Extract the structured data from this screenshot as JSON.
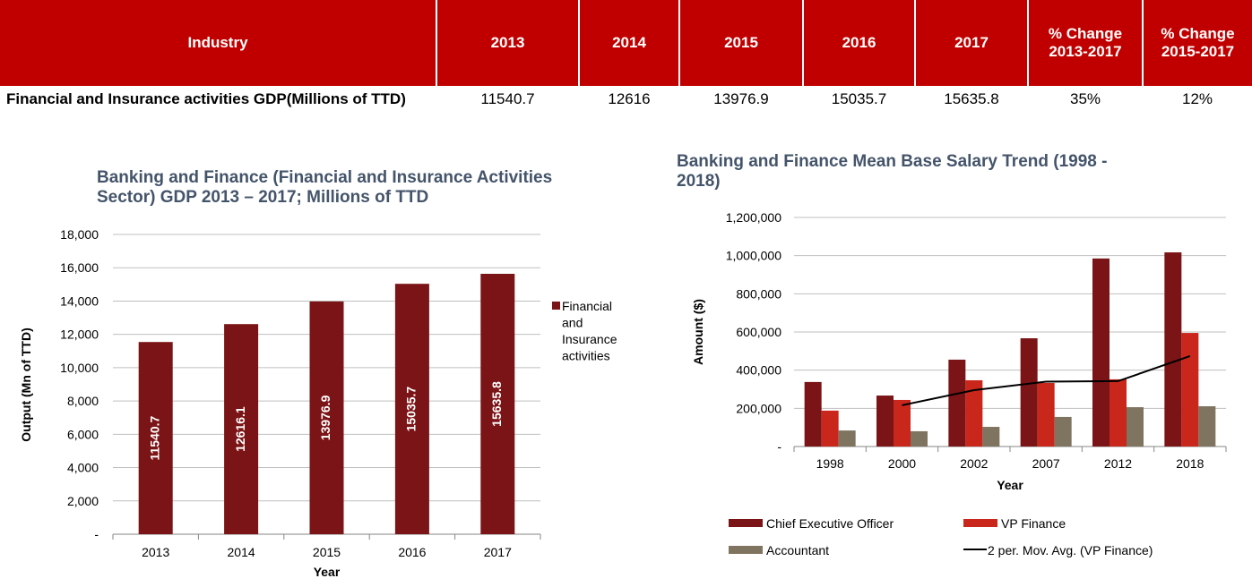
{
  "table": {
    "headers": [
      "Industry",
      "2013",
      "2014",
      "2015",
      "2016",
      "2017",
      "% Change 2013-2017",
      "% Change 2015-2017"
    ],
    "rows": [
      [
        "Financial and Insurance activities GDP(Millions of TTD)",
        "11540.7",
        "12616",
        "13976.9",
        "15035.7",
        "15635.8",
        "35%",
        "12%"
      ]
    ]
  },
  "colors": {
    "header_bg": "#c00000",
    "gdp_bar": "#7b1416",
    "ceo": "#7b1416",
    "vp": "#c9261c",
    "accountant": "#7f7460",
    "moving_avg": "#000000",
    "title": "#44546a"
  },
  "chart_data": [
    {
      "type": "bar",
      "title": "Banking and Finance (Financial and Insurance Activities Sector) GDP 2013 – 2017; Millions of TTD",
      "xlabel": "Year",
      "ylabel": "Output  (Mn of TTD)",
      "categories": [
        "2013",
        "2014",
        "2015",
        "2016",
        "2017"
      ],
      "series": [
        {
          "name": "Financial and Insurance activities",
          "values": [
            11540.7,
            12616.1,
            13976.9,
            15035.7,
            15635.8
          ]
        }
      ],
      "data_labels": [
        "11540.7",
        "12616.1",
        "13976.9",
        "15035.7",
        "15635.8"
      ],
      "ylim": [
        0,
        18000
      ],
      "yticks": [
        "-",
        "2,000",
        "4,000",
        "6,000",
        "8,000",
        "10,000",
        "12,000",
        "14,000",
        "16,000",
        "18,000"
      ],
      "grid": true,
      "legend": "right"
    },
    {
      "type": "bar",
      "title": "Banking and Finance Mean Base Salary Trend (1998 - 2018)",
      "xlabel": "Year",
      "ylabel": "Amount ($)",
      "categories": [
        "1998",
        "2000",
        "2002",
        "2007",
        "2012",
        "2018"
      ],
      "series": [
        {
          "name": "Chief Executive Officer",
          "values": [
            338000,
            267000,
            455000,
            567000,
            985000,
            1017000
          ]
        },
        {
          "name": "VP Finance",
          "values": [
            188000,
            244000,
            347000,
            333000,
            352000,
            595000
          ]
        },
        {
          "name": "Accountant",
          "values": [
            84000,
            80000,
            103000,
            155000,
            206000,
            211000
          ]
        }
      ],
      "trendline": {
        "name": "2 per. Mov. Avg. (VP Finance)",
        "type": "line",
        "values": [
          null,
          216000,
          295500,
          340000,
          342500,
          473500
        ]
      },
      "ylim": [
        0,
        1200000
      ],
      "yticks": [
        "-",
        "200,000",
        "400,000",
        "600,000",
        "800,000",
        "1,000,000",
        "1,200,000"
      ],
      "grid": true,
      "legend": "bottom"
    }
  ]
}
